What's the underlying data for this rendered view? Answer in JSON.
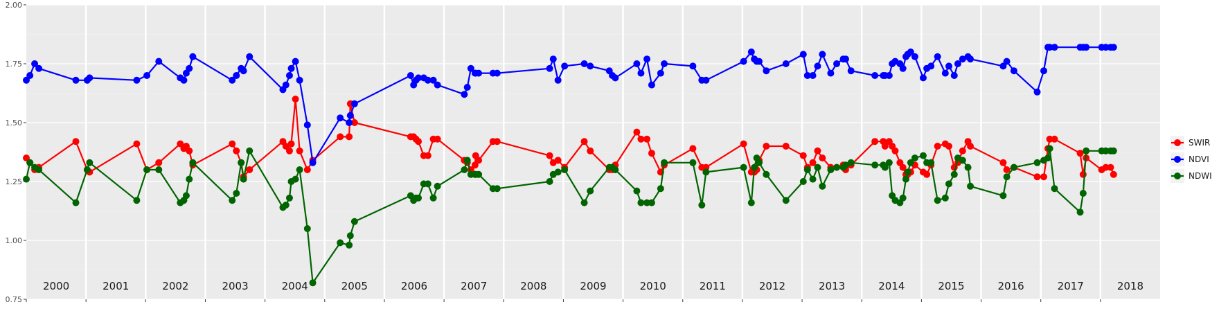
{
  "chart_data": {
    "type": "line",
    "title": "",
    "xlabel": "",
    "ylabel": "",
    "xlim": [
      2000.0,
      2019.0
    ],
    "ylim": [
      0.75,
      2.0
    ],
    "yticks": [
      "0.75",
      "1.00",
      "1.25",
      "1.50",
      "1.75",
      "2.00"
    ],
    "ytick_values": [
      0.75,
      1.0,
      1.25,
      1.5,
      1.75,
      2.0
    ],
    "year_labels": [
      "2000",
      "2001",
      "2002",
      "2003",
      "2004",
      "2005",
      "2006",
      "2007",
      "2008",
      "2009",
      "2010",
      "2011",
      "2012",
      "2013",
      "2014",
      "2015",
      "2016",
      "2017",
      "2018"
    ],
    "year_starts": [
      2000,
      2001,
      2002,
      2003,
      2004,
      2005,
      2006,
      2007,
      2008,
      2009,
      2010,
      2011,
      2012,
      2013,
      2014,
      2015,
      2016,
      2017,
      2018
    ],
    "legend_position": "right",
    "background": "#ebebeb",
    "grid": true,
    "series": [
      {
        "name": "SWIR",
        "color": "#ff0000",
        "x": [
          2000.0,
          2000.06,
          2000.14,
          2000.21,
          2000.83,
          2001.02,
          2001.06,
          2001.85,
          2002.02,
          2002.22,
          2002.58,
          2002.64,
          2002.68,
          2002.73,
          2002.79,
          2003.45,
          2003.52,
          2003.6,
          2003.64,
          2003.74,
          2004.3,
          2004.35,
          2004.41,
          2004.44,
          2004.51,
          2004.58,
          2004.71,
          2004.8,
          2005.26,
          2005.41,
          2005.43,
          2005.5,
          2006.44,
          2006.49,
          2006.53,
          2006.57,
          2006.66,
          2006.73,
          2006.82,
          2006.89,
          2007.34,
          2007.39,
          2007.45,
          2007.52,
          2007.53,
          2007.58,
          2007.82,
          2007.89,
          2008.77,
          2008.83,
          2008.91,
          2009.02,
          2009.35,
          2009.45,
          2009.77,
          2009.82,
          2009.87,
          2010.23,
          2010.3,
          2010.4,
          2010.48,
          2010.63,
          2010.69,
          2011.17,
          2011.32,
          2011.39,
          2012.02,
          2012.15,
          2012.2,
          2012.24,
          2012.28,
          2012.4,
          2012.73,
          2013.02,
          2013.09,
          2013.18,
          2013.26,
          2013.34,
          2013.48,
          2013.58,
          2013.69,
          2013.73,
          2013.82,
          2014.22,
          2014.36,
          2014.39,
          2014.46,
          2014.51,
          2014.56,
          2014.64,
          2014.69,
          2014.74,
          2014.77,
          2014.82,
          2014.89,
          2015.03,
          2015.09,
          2015.16,
          2015.27,
          2015.4,
          2015.46,
          2015.55,
          2015.61,
          2015.69,
          2015.78,
          2015.82,
          2016.37,
          2016.43,
          2016.55,
          2016.94,
          2017.05,
          2017.12,
          2017.15,
          2017.23,
          2017.66,
          2017.71,
          2017.76,
          2018.02,
          2018.09,
          2018.17,
          2018.22
        ],
        "y": [
          1.35,
          1.33,
          1.3,
          1.31,
          1.42,
          1.3,
          1.29,
          1.41,
          1.3,
          1.33,
          1.41,
          1.39,
          1.4,
          1.38,
          1.32,
          1.41,
          1.38,
          1.33,
          1.27,
          1.3,
          1.42,
          1.4,
          1.38,
          1.41,
          1.6,
          1.38,
          1.3,
          1.34,
          1.44,
          1.44,
          1.58,
          1.5,
          1.44,
          1.44,
          1.43,
          1.42,
          1.36,
          1.36,
          1.43,
          1.43,
          1.34,
          1.33,
          1.3,
          1.32,
          1.36,
          1.34,
          1.42,
          1.42,
          1.36,
          1.33,
          1.34,
          1.31,
          1.42,
          1.38,
          1.3,
          1.3,
          1.32,
          1.46,
          1.43,
          1.43,
          1.37,
          1.29,
          1.32,
          1.39,
          1.31,
          1.31,
          1.41,
          1.29,
          1.29,
          1.3,
          1.34,
          1.4,
          1.4,
          1.36,
          1.31,
          1.33,
          1.38,
          1.35,
          1.31,
          1.31,
          1.32,
          1.3,
          1.32,
          1.42,
          1.42,
          1.4,
          1.42,
          1.4,
          1.38,
          1.33,
          1.31,
          1.28,
          1.28,
          1.29,
          1.32,
          1.29,
          1.28,
          1.32,
          1.4,
          1.41,
          1.4,
          1.31,
          1.33,
          1.38,
          1.42,
          1.4,
          1.33,
          1.3,
          1.31,
          1.27,
          1.27,
          1.39,
          1.43,
          1.43,
          1.37,
          1.28,
          1.35,
          1.3,
          1.31,
          1.31,
          1.28
        ]
      },
      {
        "name": "NDVI",
        "color": "#0000ff",
        "x": [
          2000.0,
          2000.06,
          2000.14,
          2000.21,
          2000.83,
          2001.02,
          2001.06,
          2001.85,
          2002.02,
          2002.22,
          2002.58,
          2002.64,
          2002.68,
          2002.73,
          2002.79,
          2003.45,
          2003.52,
          2003.6,
          2003.64,
          2003.74,
          2004.3,
          2004.35,
          2004.41,
          2004.44,
          2004.51,
          2004.58,
          2004.71,
          2004.8,
          2005.26,
          2005.41,
          2005.43,
          2005.5,
          2006.44,
          2006.49,
          2006.53,
          2006.57,
          2006.66,
          2006.73,
          2006.82,
          2006.89,
          2007.34,
          2007.39,
          2007.45,
          2007.52,
          2007.53,
          2007.58,
          2007.82,
          2007.89,
          2008.77,
          2008.83,
          2008.91,
          2009.02,
          2009.35,
          2009.45,
          2009.77,
          2009.82,
          2009.87,
          2010.23,
          2010.3,
          2010.4,
          2010.48,
          2010.63,
          2010.69,
          2011.17,
          2011.32,
          2011.39,
          2012.02,
          2012.15,
          2012.2,
          2012.24,
          2012.28,
          2012.4,
          2012.73,
          2013.02,
          2013.09,
          2013.18,
          2013.26,
          2013.34,
          2013.48,
          2013.58,
          2013.69,
          2013.73,
          2013.82,
          2014.22,
          2014.36,
          2014.39,
          2014.46,
          2014.51,
          2014.56,
          2014.64,
          2014.69,
          2014.74,
          2014.77,
          2014.82,
          2014.89,
          2015.03,
          2015.09,
          2015.16,
          2015.27,
          2015.4,
          2015.46,
          2015.55,
          2015.61,
          2015.69,
          2015.78,
          2015.82,
          2016.37,
          2016.43,
          2016.55,
          2016.94,
          2017.05,
          2017.12,
          2017.15,
          2017.23,
          2017.66,
          2017.71,
          2017.76,
          2018.02,
          2018.09,
          2018.17,
          2018.22
        ],
        "y": [
          1.68,
          1.7,
          1.75,
          1.73,
          1.68,
          1.68,
          1.69,
          1.68,
          1.7,
          1.76,
          1.69,
          1.68,
          1.71,
          1.73,
          1.78,
          1.68,
          1.7,
          1.73,
          1.72,
          1.78,
          1.64,
          1.66,
          1.7,
          1.73,
          1.76,
          1.68,
          1.49,
          1.33,
          1.52,
          1.5,
          1.53,
          1.58,
          1.7,
          1.66,
          1.68,
          1.69,
          1.69,
          1.68,
          1.68,
          1.66,
          1.62,
          1.65,
          1.73,
          1.71,
          1.71,
          1.71,
          1.71,
          1.71,
          1.73,
          1.77,
          1.68,
          1.74,
          1.75,
          1.74,
          1.72,
          1.7,
          1.69,
          1.75,
          1.71,
          1.77,
          1.66,
          1.71,
          1.75,
          1.74,
          1.68,
          1.68,
          1.76,
          1.8,
          1.77,
          1.76,
          1.76,
          1.72,
          1.75,
          1.79,
          1.7,
          1.7,
          1.74,
          1.79,
          1.71,
          1.75,
          1.77,
          1.77,
          1.72,
          1.7,
          1.7,
          1.7,
          1.7,
          1.75,
          1.76,
          1.75,
          1.73,
          1.78,
          1.79,
          1.8,
          1.78,
          1.69,
          1.73,
          1.74,
          1.78,
          1.71,
          1.74,
          1.7,
          1.75,
          1.77,
          1.78,
          1.77,
          1.74,
          1.76,
          1.72,
          1.63,
          1.72,
          1.82,
          1.82,
          1.82,
          1.82,
          1.82,
          1.82,
          1.82,
          1.82,
          1.82,
          1.82
        ]
      },
      {
        "name": "NDWI",
        "color": "#006400",
        "x": [
          2000.0,
          2000.06,
          2000.14,
          2000.21,
          2000.83,
          2001.02,
          2001.06,
          2001.85,
          2002.02,
          2002.22,
          2002.58,
          2002.64,
          2002.68,
          2002.73,
          2002.79,
          2003.45,
          2003.52,
          2003.6,
          2003.64,
          2003.74,
          2004.3,
          2004.35,
          2004.41,
          2004.44,
          2004.51,
          2004.58,
          2004.71,
          2004.8,
          2005.26,
          2005.41,
          2005.43,
          2005.5,
          2006.44,
          2006.49,
          2006.53,
          2006.57,
          2006.66,
          2006.73,
          2006.82,
          2006.89,
          2007.34,
          2007.39,
          2007.45,
          2007.52,
          2007.53,
          2007.58,
          2007.82,
          2007.89,
          2008.77,
          2008.83,
          2008.91,
          2009.02,
          2009.35,
          2009.45,
          2009.77,
          2009.82,
          2009.87,
          2010.23,
          2010.3,
          2010.4,
          2010.48,
          2010.63,
          2010.69,
          2011.17,
          2011.32,
          2011.39,
          2012.02,
          2012.15,
          2012.2,
          2012.24,
          2012.28,
          2012.4,
          2012.73,
          2013.02,
          2013.09,
          2013.18,
          2013.26,
          2013.34,
          2013.48,
          2013.58,
          2013.69,
          2013.73,
          2013.82,
          2014.22,
          2014.36,
          2014.39,
          2014.46,
          2014.51,
          2014.56,
          2014.64,
          2014.69,
          2014.74,
          2014.77,
          2014.82,
          2014.89,
          2015.03,
          2015.09,
          2015.16,
          2015.27,
          2015.4,
          2015.46,
          2015.55,
          2015.61,
          2015.69,
          2015.78,
          2015.82,
          2016.37,
          2016.43,
          2016.55,
          2016.94,
          2017.05,
          2017.12,
          2017.15,
          2017.23,
          2017.66,
          2017.71,
          2017.76,
          2018.02,
          2018.09,
          2018.17,
          2018.22
        ],
        "y": [
          1.26,
          1.33,
          1.31,
          1.3,
          1.16,
          1.3,
          1.33,
          1.17,
          1.3,
          1.3,
          1.16,
          1.17,
          1.19,
          1.26,
          1.33,
          1.17,
          1.2,
          1.33,
          1.26,
          1.38,
          1.14,
          1.15,
          1.18,
          1.25,
          1.26,
          1.3,
          1.05,
          0.82,
          0.99,
          0.98,
          1.02,
          1.08,
          1.19,
          1.17,
          1.18,
          1.18,
          1.24,
          1.24,
          1.18,
          1.23,
          1.3,
          1.34,
          1.28,
          1.28,
          1.28,
          1.28,
          1.22,
          1.22,
          1.25,
          1.28,
          1.29,
          1.3,
          1.16,
          1.21,
          1.31,
          1.31,
          1.3,
          1.21,
          1.16,
          1.16,
          1.16,
          1.22,
          1.33,
          1.33,
          1.15,
          1.29,
          1.31,
          1.16,
          1.31,
          1.35,
          1.33,
          1.28,
          1.17,
          1.25,
          1.3,
          1.26,
          1.31,
          1.23,
          1.3,
          1.31,
          1.31,
          1.32,
          1.33,
          1.32,
          1.32,
          1.31,
          1.33,
          1.19,
          1.17,
          1.16,
          1.18,
          1.26,
          1.29,
          1.33,
          1.35,
          1.36,
          1.33,
          1.33,
          1.17,
          1.18,
          1.24,
          1.28,
          1.35,
          1.34,
          1.31,
          1.23,
          1.19,
          1.27,
          1.31,
          1.33,
          1.34,
          1.35,
          1.39,
          1.22,
          1.12,
          1.2,
          1.38,
          1.38,
          1.38,
          1.38,
          1.38
        ]
      }
    ]
  }
}
